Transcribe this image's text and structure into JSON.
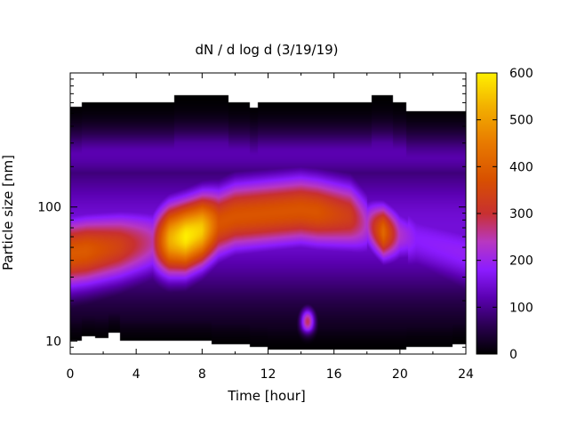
{
  "chart_data": {
    "type": "heatmap",
    "title": "dN / d log d (3/19/19)",
    "xlabel": "Time [hour]",
    "ylabel": "Particle size [nm]",
    "x_range": [
      0,
      24
    ],
    "x_ticks": [
      "0",
      "4",
      "8",
      "12",
      "16",
      "20",
      "24"
    ],
    "y_scale": "log",
    "y_range": [
      8,
      1000
    ],
    "y_ticks": [
      "10",
      "100"
    ],
    "colorbar": {
      "range": [
        0,
        600
      ],
      "ticks": [
        "0",
        "100",
        "200",
        "300",
        "400",
        "500",
        "600"
      ],
      "colormap": "black-purple-magenta-orange-yellow"
    },
    "colors": {
      "map": [
        "#000000",
        "#3a0068",
        "#6a00c8",
        "#8c1cff",
        "#b030b4",
        "#c83020",
        "#e06000",
        "#f09a00",
        "#fde000",
        "#ffff40"
      ]
    },
    "size_coverage": [
      {
        "t": 0,
        "lo": 10,
        "hi": 560
      },
      {
        "t": 0.7,
        "lo": 10.8,
        "hi": 600
      },
      {
        "t": 1.5,
        "lo": 10.5,
        "hi": 600
      },
      {
        "t": 2.3,
        "lo": 11.5,
        "hi": 600
      },
      {
        "t": 3.0,
        "lo": 10,
        "hi": 600
      },
      {
        "t": 6.3,
        "lo": 10,
        "hi": 680
      },
      {
        "t": 8.6,
        "lo": 9.5,
        "hi": 680
      },
      {
        "t": 9.6,
        "lo": 9.5,
        "hi": 600
      },
      {
        "t": 10.9,
        "lo": 9,
        "hi": 550
      },
      {
        "t": 11.4,
        "lo": 9,
        "hi": 600
      },
      {
        "t": 12.0,
        "lo": 8.7,
        "hi": 600
      },
      {
        "t": 18.3,
        "lo": 8.7,
        "hi": 680
      },
      {
        "t": 19.6,
        "lo": 8.7,
        "hi": 600
      },
      {
        "t": 20.4,
        "lo": 9,
        "hi": 520
      },
      {
        "t": 23.2,
        "lo": 9.5,
        "hi": 520
      }
    ],
    "modes": [
      {
        "t": 0.5,
        "d": 45,
        "value": 380
      },
      {
        "t": 2.0,
        "d": 55,
        "value": 360
      },
      {
        "t": 7.0,
        "d": 60,
        "value": 600
      },
      {
        "t": 10.5,
        "d": 95,
        "value": 370
      },
      {
        "t": 14.5,
        "d": 95,
        "value": 360
      },
      {
        "t": 14.4,
        "d": 14,
        "value": 270
      },
      {
        "t": 19.0,
        "d": 60,
        "value": 400
      },
      {
        "t": 22.5,
        "d": 40,
        "value": 200
      }
    ]
  }
}
